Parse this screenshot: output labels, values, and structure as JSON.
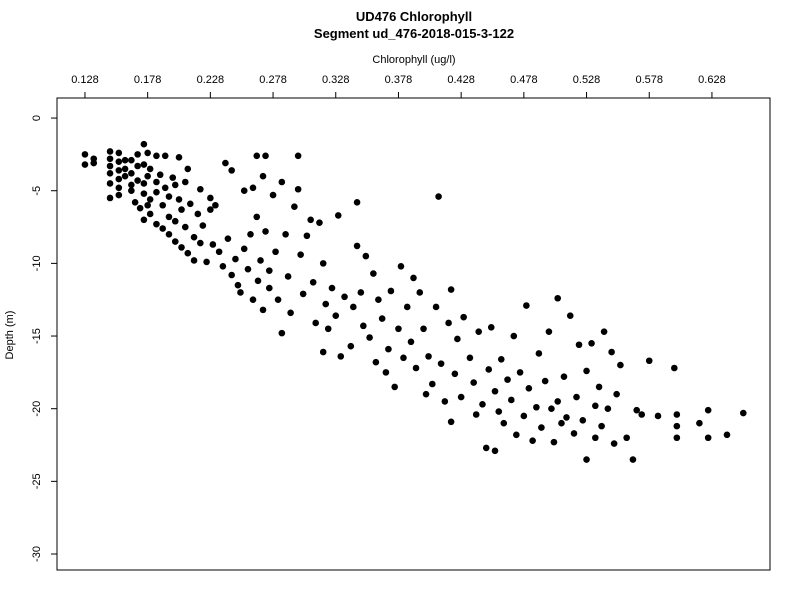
{
  "chart_data": {
    "type": "scatter",
    "title": "UD476 Chlorophyll",
    "subtitle": "Segment ud_476-2018-015-3-122",
    "x_label": "Chlorophyll (ug/l)",
    "y_label": "Depth (m)",
    "xlim": [
      0.1057,
      0.6743
    ],
    "ylim": [
      -31.1,
      1.38
    ],
    "xticks": [
      0.128,
      0.178,
      0.228,
      0.278,
      0.328,
      0.378,
      0.428,
      0.478,
      0.528,
      0.578,
      0.628
    ],
    "yticks": [
      0,
      -5,
      -10,
      -15,
      -20,
      -25,
      -30
    ],
    "grid": false,
    "series": [
      {
        "color": "#000000",
        "x": [
          0.128,
          0.128,
          0.135,
          0.135,
          0.148,
          0.148,
          0.148,
          0.148,
          0.148,
          0.148,
          0.155,
          0.155,
          0.155,
          0.155,
          0.155,
          0.155,
          0.16,
          0.16,
          0.16,
          0.165,
          0.165,
          0.165,
          0.165,
          0.168,
          0.17,
          0.17,
          0.17,
          0.172,
          0.175,
          0.175,
          0.175,
          0.175,
          0.175,
          0.178,
          0.178,
          0.178,
          0.18,
          0.18,
          0.18,
          0.185,
          0.185,
          0.185,
          0.185,
          0.188,
          0.19,
          0.19,
          0.192,
          0.192,
          0.195,
          0.195,
          0.195,
          0.198,
          0.2,
          0.2,
          0.2,
          0.203,
          0.203,
          0.205,
          0.205,
          0.208,
          0.208,
          0.21,
          0.21,
          0.212,
          0.215,
          0.215,
          0.218,
          0.22,
          0.22,
          0.222,
          0.225,
          0.228,
          0.228,
          0.23,
          0.232,
          0.235,
          0.238,
          0.24,
          0.242,
          0.245,
          0.245,
          0.248,
          0.25,
          0.252,
          0.255,
          0.255,
          0.258,
          0.26,
          0.262,
          0.262,
          0.265,
          0.265,
          0.266,
          0.268,
          0.27,
          0.27,
          0.272,
          0.272,
          0.275,
          0.275,
          0.278,
          0.28,
          0.282,
          0.285,
          0.285,
          0.288,
          0.29,
          0.292,
          0.295,
          0.298,
          0.298,
          0.3,
          0.302,
          0.305,
          0.308,
          0.31,
          0.312,
          0.315,
          0.318,
          0.318,
          0.32,
          0.322,
          0.325,
          0.328,
          0.33,
          0.332,
          0.335,
          0.34,
          0.342,
          0.345,
          0.345,
          0.348,
          0.35,
          0.352,
          0.355,
          0.358,
          0.36,
          0.362,
          0.365,
          0.368,
          0.37,
          0.372,
          0.375,
          0.378,
          0.38,
          0.382,
          0.385,
          0.388,
          0.39,
          0.392,
          0.395,
          0.398,
          0.4,
          0.402,
          0.405,
          0.408,
          0.41,
          0.412,
          0.415,
          0.418,
          0.42,
          0.42,
          0.423,
          0.425,
          0.428,
          0.43,
          0.435,
          0.438,
          0.44,
          0.442,
          0.445,
          0.448,
          0.45,
          0.452,
          0.455,
          0.455,
          0.458,
          0.46,
          0.462,
          0.465,
          0.468,
          0.47,
          0.472,
          0.475,
          0.478,
          0.48,
          0.482,
          0.485,
          0.488,
          0.49,
          0.492,
          0.495,
          0.498,
          0.5,
          0.502,
          0.505,
          0.505,
          0.508,
          0.51,
          0.512,
          0.515,
          0.518,
          0.52,
          0.522,
          0.525,
          0.528,
          0.528,
          0.532,
          0.535,
          0.535,
          0.538,
          0.54,
          0.542,
          0.545,
          0.548,
          0.55,
          0.552,
          0.555,
          0.56,
          0.565,
          0.568,
          0.572,
          0.578,
          0.585,
          0.598,
          0.6,
          0.6,
          0.6,
          0.618,
          0.625,
          0.625,
          0.64,
          0.653
        ],
        "values": [
          -2.5,
          -3.2,
          -2.8,
          -3.1,
          -2.3,
          -2.8,
          -3.3,
          -3.8,
          -4.5,
          -5.5,
          -2.4,
          -3.0,
          -3.6,
          -4.2,
          -4.8,
          -5.3,
          -2.9,
          -3.5,
          -4.0,
          -2.9,
          -3.8,
          -4.6,
          -5.0,
          -5.8,
          -2.5,
          -3.3,
          -4.3,
          -6.2,
          -1.8,
          -3.2,
          -4.5,
          -5.2,
          -7.0,
          -2.4,
          -4.0,
          -6.0,
          -3.5,
          -5.6,
          -6.6,
          -2.6,
          -4.4,
          -5.1,
          -7.3,
          -3.9,
          -6.0,
          -7.6,
          -2.6,
          -4.8,
          -5.4,
          -6.8,
          -8.0,
          -4.1,
          -4.6,
          -7.1,
          -8.5,
          -2.7,
          -5.6,
          -6.3,
          -8.9,
          -4.4,
          -7.5,
          -3.5,
          -9.3,
          -5.9,
          -8.2,
          -9.8,
          -6.6,
          -4.9,
          -8.6,
          -7.4,
          -9.9,
          -5.5,
          -6.3,
          -8.7,
          -6.0,
          -9.2,
          -10.2,
          -3.1,
          -8.3,
          -3.6,
          -10.8,
          -9.7,
          -11.5,
          -12.0,
          -5.0,
          -9.0,
          -10.4,
          -8.0,
          -4.8,
          -12.5,
          -2.6,
          -6.8,
          -11.2,
          -9.8,
          -4.0,
          -13.2,
          -2.6,
          -7.8,
          -10.5,
          -11.7,
          -5.3,
          -9.2,
          -12.5,
          -4.4,
          -14.8,
          -8.0,
          -10.9,
          -13.4,
          -6.1,
          -2.6,
          -4.9,
          -9.4,
          -12.1,
          -8.1,
          -7.0,
          -11.3,
          -14.1,
          -7.2,
          -16.1,
          -10.0,
          -12.8,
          -14.5,
          -11.7,
          -13.6,
          -6.7,
          -16.4,
          -12.3,
          -15.7,
          -13.0,
          -5.8,
          -8.8,
          -12.0,
          -14.3,
          -9.5,
          -15.1,
          -10.7,
          -16.8,
          -12.5,
          -13.8,
          -17.5,
          -15.9,
          -11.9,
          -18.5,
          -14.5,
          -10.2,
          -16.5,
          -13.0,
          -15.4,
          -11.0,
          -17.2,
          -12.0,
          -14.5,
          -19.0,
          -16.4,
          -18.3,
          -13.0,
          -5.4,
          -16.9,
          -19.5,
          -14.1,
          -11.8,
          -20.9,
          -17.6,
          -15.2,
          -19.2,
          -13.7,
          -16.5,
          -18.2,
          -20.4,
          -14.7,
          -19.7,
          -22.7,
          -17.3,
          -14.4,
          -22.9,
          -18.8,
          -20.2,
          -16.6,
          -21.0,
          -18.0,
          -19.4,
          -15.0,
          -21.8,
          -17.5,
          -20.5,
          -12.9,
          -18.6,
          -22.2,
          -19.9,
          -16.2,
          -21.3,
          -18.1,
          -14.7,
          -20.0,
          -22.3,
          -12.4,
          -19.5,
          -21.0,
          -17.8,
          -20.6,
          -13.6,
          -21.7,
          -19.2,
          -15.6,
          -20.8,
          -23.5,
          -17.4,
          -15.5,
          -19.8,
          -22.0,
          -18.5,
          -21.2,
          -14.7,
          -20.0,
          -16.1,
          -22.4,
          -19.0,
          -17.0,
          -22.0,
          -23.5,
          -20.1,
          -20.4,
          -16.7,
          -20.5,
          -17.2,
          -20.4,
          -21.2,
          -22.0,
          -21.0,
          -20.1,
          -22.0,
          -21.8,
          -20.3
        ]
      }
    ]
  }
}
